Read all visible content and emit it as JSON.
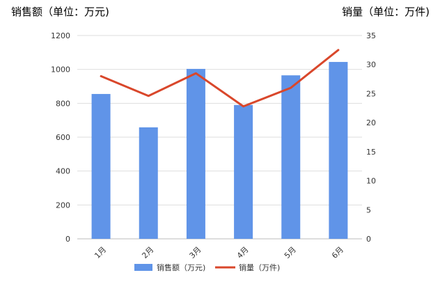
{
  "chart_data": {
    "type": "bar",
    "title": "",
    "ylabel": "销售额（单位：万元)",
    "y2label": "销量（单位：万件)",
    "categories": [
      "1月",
      "2月",
      "3月",
      "4月",
      "5月",
      "6月"
    ],
    "ylim": [
      0,
      1200
    ],
    "yticks": [
      "0",
      "200",
      "400",
      "600",
      "800",
      "1000",
      "1200"
    ],
    "y2lim": [
      0,
      35
    ],
    "y2ticks": [
      "0",
      "5",
      "10",
      "15",
      "20",
      "25",
      "30",
      "35"
    ],
    "grid": true,
    "legend": "bottom",
    "series": [
      {
        "name": "销售额（万元)",
        "type": "bar",
        "axis": "left",
        "color": "#6094e8",
        "values": [
          855,
          658,
          1003,
          790,
          965,
          1044
        ]
      },
      {
        "name": "销量（万件)",
        "type": "line",
        "axis": "right",
        "color": "#d9472b",
        "values": [
          28,
          24.6,
          28.5,
          22.8,
          26,
          32.5
        ]
      }
    ]
  }
}
